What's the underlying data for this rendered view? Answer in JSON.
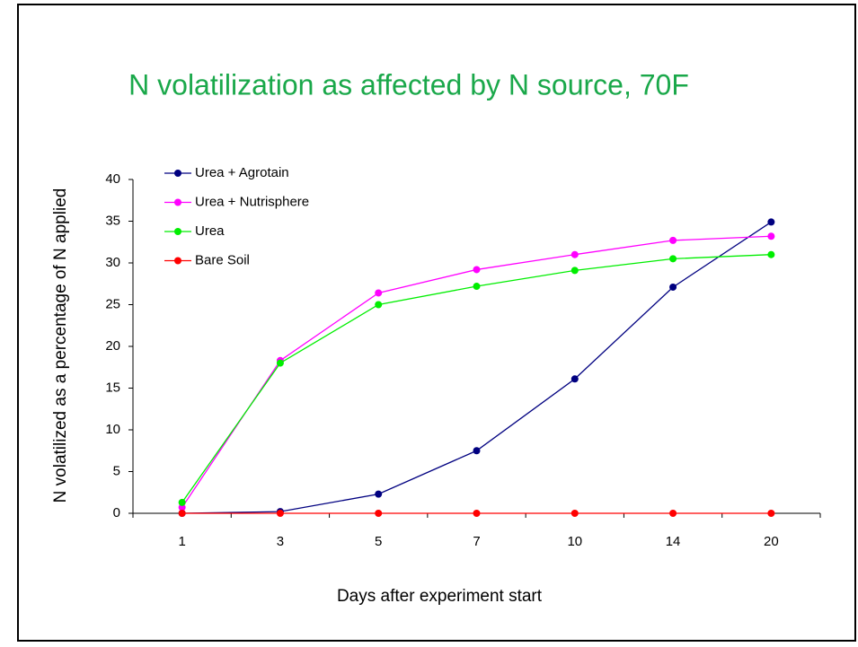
{
  "chart_data": {
    "type": "line",
    "title": "N volatilization as affected by N source, 70F",
    "x_label": "Days after experiment start",
    "y_label": "N volatilized as a percentage of N applied",
    "categories": [
      "1",
      "3",
      "5",
      "7",
      "10",
      "14",
      "20"
    ],
    "series": [
      {
        "name": "Urea + Agrotain",
        "color": "#000080",
        "values": [
          0,
          0.2,
          2.3,
          7.5,
          16.1,
          27.1,
          34.9
        ]
      },
      {
        "name": "Urea + Nutrisphere",
        "color": "#ff00ff",
        "values": [
          0.7,
          18.3,
          26.4,
          29.2,
          31.0,
          32.7,
          33.2
        ]
      },
      {
        "name": "Urea",
        "color": "#00ee00",
        "values": [
          1.3,
          18.0,
          25.0,
          27.2,
          29.1,
          30.5,
          31.0
        ]
      },
      {
        "name": "Bare Soil",
        "color": "#ff0000",
        "values": [
          0,
          0,
          0,
          0,
          0,
          0,
          0
        ]
      }
    ],
    "ylim": [
      0,
      40
    ],
    "yticks": [
      0,
      5,
      10,
      15,
      20,
      25,
      30,
      35,
      40
    ],
    "legend": "upper left",
    "title_color": "#1aa84a"
  }
}
